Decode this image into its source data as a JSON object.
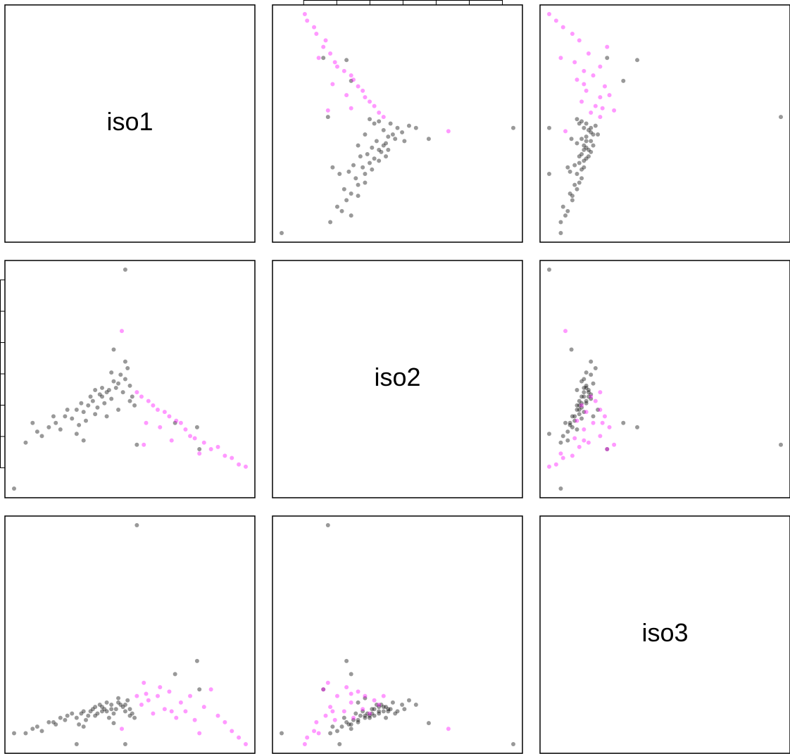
{
  "chart_data": {
    "type": "scatter_matrix",
    "variables": [
      {
        "label": "iso1",
        "lim": [
          0,
          100
        ]
      },
      {
        "label": "iso2",
        "lim": [
          0,
          100
        ],
        "ticks": [
          9.5,
          23.8,
          38.1,
          52.4,
          66.7,
          81,
          95.3
        ]
      },
      {
        "label": "iso3",
        "lim": [
          0,
          100
        ]
      }
    ],
    "series": [
      {
        "color": "rgba(0,0,0,0.4)",
        "values": [
          [
            0,
            0,
            5
          ],
          [
            48,
            100,
            0
          ],
          [
            53,
            20,
            100
          ],
          [
            79,
            28,
            38
          ],
          [
            69.5,
            30,
            32
          ],
          [
            43,
            63.5,
            9.6
          ],
          [
            27,
            25,
            0
          ],
          [
            80,
            18,
            25
          ],
          [
            10,
            26,
            8
          ],
          [
            12,
            24,
            6
          ],
          [
            15,
            28,
            10
          ],
          [
            18,
            30,
            9
          ],
          [
            20,
            27,
            12
          ],
          [
            22,
            33,
            11
          ],
          [
            25,
            32,
            14
          ],
          [
            27,
            36,
            12
          ],
          [
            30,
            35,
            15
          ],
          [
            32,
            38,
            13
          ],
          [
            34,
            40,
            16
          ],
          [
            36,
            37,
            14
          ],
          [
            38,
            42,
            17
          ],
          [
            40,
            44,
            15
          ],
          [
            42,
            41,
            18
          ],
          [
            44,
            46,
            16
          ],
          [
            45,
            48,
            19
          ],
          [
            47,
            44,
            17
          ],
          [
            48,
            50,
            15
          ],
          [
            49,
            55,
            20
          ],
          [
            46,
            52,
            18
          ],
          [
            43,
            49,
            14
          ],
          [
            41,
            45,
            12
          ],
          [
            39,
            39,
            16
          ],
          [
            37,
            43,
            18
          ],
          [
            35,
            34,
            13
          ],
          [
            33,
            42,
            15
          ],
          [
            31,
            31,
            11
          ],
          [
            29,
            39,
            14
          ],
          [
            50,
            47,
            16
          ],
          [
            51,
            42,
            14
          ],
          [
            52,
            38,
            12
          ],
          [
            28,
            29,
            9
          ],
          [
            23,
            36,
            13
          ],
          [
            17,
            33,
            10
          ],
          [
            8,
            30,
            7
          ],
          [
            5,
            21,
            5
          ],
          [
            30,
            22,
            8
          ],
          [
            40,
            33,
            19
          ],
          [
            45,
            36,
            21
          ],
          [
            35,
            45,
            17
          ],
          [
            42,
            53,
            16
          ],
          [
            48,
            58,
            18
          ],
          [
            50,
            40,
            13
          ],
          [
            38,
            46,
            15
          ]
        ]
      },
      {
        "color": "rgba(255,0,255,0.4)",
        "values": [
          [
            55,
            42,
            18
          ],
          [
            58,
            40,
            20
          ],
          [
            60,
            38,
            14
          ],
          [
            62,
            36,
            22
          ],
          [
            65,
            35,
            16
          ],
          [
            67,
            33,
            24
          ],
          [
            70,
            31,
            12
          ],
          [
            72,
            30,
            19
          ],
          [
            74,
            27,
            15
          ],
          [
            76,
            24,
            22
          ],
          [
            78,
            23,
            11
          ],
          [
            82,
            21,
            17
          ],
          [
            85,
            18,
            25
          ],
          [
            88,
            19,
            13
          ],
          [
            91,
            15,
            10
          ],
          [
            94,
            14,
            6
          ],
          [
            100,
            10,
            0
          ],
          [
            57,
            30,
            23
          ],
          [
            63,
            28,
            26
          ],
          [
            68,
            22,
            15
          ],
          [
            80,
            16,
            5
          ],
          [
            53,
            44,
            22
          ],
          [
            56,
            20,
            28
          ],
          [
            46.5,
            72,
            7
          ],
          [
            97,
            11,
            3
          ]
        ]
      }
    ]
  }
}
